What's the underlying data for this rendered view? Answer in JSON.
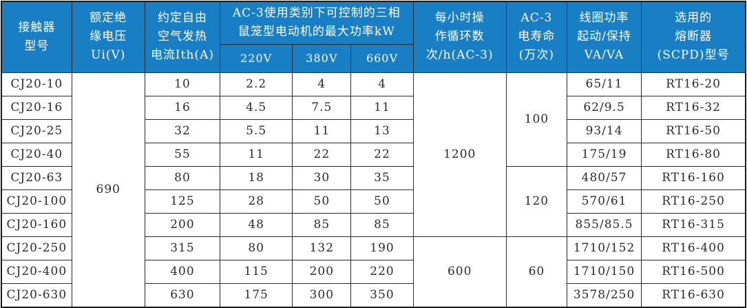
{
  "table": {
    "title_semantic": "CJ20 contactor specification table",
    "headers": {
      "model": "接触器\n型号",
      "insulation_voltage": "额定绝\n缘电压\nUi(V)",
      "thermal_current": "约定自由\n空气发热\n电流Ith(A)",
      "ac3_power_group": "AC-3使用类别下可控制的三相\n鼠笼型电动机的最大功率kW",
      "v220": "220V",
      "v380": "380V",
      "v660": "660V",
      "cycles": "每小时操\n作循环数\n次/h(AC-3)",
      "electrical_life": "AC-3\n电寿命\n(万次)",
      "coil_power": "线圈功率\n起动/保持\nVA/VA",
      "fuse": "选用的\n熔断器\n(SCPD)型号"
    },
    "body_columns": [
      "model",
      "insulation_voltage",
      "thermal_current",
      "v220",
      "v380",
      "v660",
      "cycles",
      "electrical_life",
      "coil_power",
      "fuse"
    ],
    "rows": [
      {
        "model": "CJ20-10",
        "thermal_current": "10",
        "v220": "2.2",
        "v380": "4",
        "v660": "4",
        "coil_power": "65/11",
        "fuse": "RT16-20"
      },
      {
        "model": "CJ20-16",
        "thermal_current": "16",
        "v220": "4.5",
        "v380": "7.5",
        "v660": "11",
        "coil_power": "62/9.5",
        "fuse": "RT16-32"
      },
      {
        "model": "CJ20-25",
        "thermal_current": "32",
        "v220": "5.5",
        "v380": "11",
        "v660": "13",
        "coil_power": "93/14",
        "fuse": "RT16-50"
      },
      {
        "model": "CJ20-40",
        "thermal_current": "55",
        "v220": "11",
        "v380": "22",
        "v660": "22",
        "coil_power": "175/19",
        "fuse": "RT16-80"
      },
      {
        "model": "CJ20-63",
        "thermal_current": "80",
        "v220": "18",
        "v380": "30",
        "v660": "35",
        "coil_power": "480/57",
        "fuse": "RT16-160"
      },
      {
        "model": "CJ20-100",
        "thermal_current": "125",
        "v220": "28",
        "v380": "50",
        "v660": "50",
        "coil_power": "570/61",
        "fuse": "RT16-250"
      },
      {
        "model": "CJ20-160",
        "thermal_current": "200",
        "v220": "48",
        "v380": "85",
        "v660": "85",
        "coil_power": "855/85.5",
        "fuse": "RT16-315"
      },
      {
        "model": "CJ20-250",
        "thermal_current": "315",
        "v220": "80",
        "v380": "132",
        "v660": "190",
        "coil_power": "1710/152",
        "fuse": "RT16-400"
      },
      {
        "model": "CJ20-400",
        "thermal_current": "400",
        "v220": "115",
        "v380": "200",
        "v660": "220",
        "coil_power": "1710/150",
        "fuse": "RT16-500"
      },
      {
        "model": "CJ20-630",
        "thermal_current": "630",
        "v220": "175",
        "v380": "300",
        "v660": "350",
        "coil_power": "3578/250",
        "fuse": "RT16-630"
      }
    ],
    "merged_cells": {
      "insulation_voltage": [
        {
          "row": 0,
          "span": 10,
          "value": "690"
        }
      ],
      "cycles": [
        {
          "row": 0,
          "span": 7,
          "value": "1200"
        },
        {
          "row": 7,
          "span": 3,
          "value": "600"
        }
      ],
      "electrical_life": [
        {
          "row": 0,
          "span": 4,
          "value": "100"
        },
        {
          "row": 4,
          "span": 3,
          "value": "120"
        },
        {
          "row": 7,
          "span": 3,
          "value": "60"
        }
      ]
    },
    "colors": {
      "header_bg": "#187fc4",
      "header_text": "#ffffff",
      "body_text": "#2b2b2b",
      "border": "#2a2a2a"
    }
  }
}
